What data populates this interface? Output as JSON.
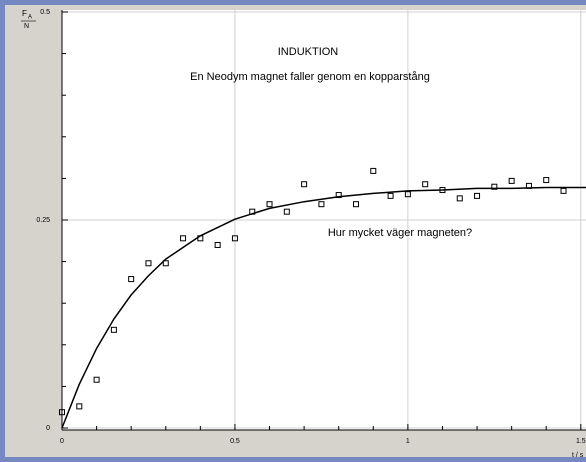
{
  "chart_data": {
    "type": "scatter",
    "title": "INDUKTION",
    "subtitle": "En Neodym magnet faller genom en kopparstång",
    "annotation": "Hur mycket väger magneten?",
    "ylabel": {
      "symbol": "F",
      "subscript": "A",
      "unit": "N"
    },
    "xlabel": "t / s",
    "xlim": [
      0,
      1.515
    ],
    "ylim": [
      0,
      0.5
    ],
    "xticks": [
      0,
      0.5,
      1,
      1.5
    ],
    "yticks": [
      0,
      0.25,
      0.5
    ],
    "xminorticks": [
      0.1,
      0.2,
      0.3,
      0.4,
      0.6,
      0.7,
      0.8,
      0.9,
      1.1,
      1.2,
      1.3,
      1.4
    ],
    "yminorticks": [
      0.05,
      0.1,
      0.15,
      0.2,
      0.3,
      0.35,
      0.4,
      0.45
    ],
    "grid": true,
    "series": [
      {
        "type": "scatter",
        "color": "#000000",
        "x": [
          0,
          0.05,
          0.1,
          0.15,
          0.2,
          0.25,
          0.3,
          0.35,
          0.4,
          0.45,
          0.5,
          0.55,
          0.6,
          0.65,
          0.7,
          0.75,
          0.8,
          0.85,
          0.9,
          0.95,
          1.0,
          1.05,
          1.1,
          1.15,
          1.2,
          1.25,
          1.3,
          1.35,
          1.4,
          1.45
        ],
        "values": [
          0.019,
          0.026,
          0.058,
          0.118,
          0.179,
          0.198,
          0.198,
          0.228,
          0.228,
          0.22,
          0.228,
          0.26,
          0.269,
          0.26,
          0.293,
          0.269,
          0.28,
          0.269,
          0.309,
          0.279,
          0.281,
          0.293,
          0.286,
          0.276,
          0.279,
          0.29,
          0.297,
          0.291,
          0.298,
          0.285
        ]
      },
      {
        "type": "line",
        "color": "#000000",
        "x": [
          0,
          0.05,
          0.1,
          0.15,
          0.2,
          0.25,
          0.3,
          0.4,
          0.5,
          0.6,
          0.7,
          0.8,
          0.9,
          1.0,
          1.1,
          1.2,
          1.3,
          1.4,
          1.515
        ],
        "values": [
          0,
          0.0526,
          0.0956,
          0.131,
          0.16,
          0.183,
          0.203,
          0.231,
          0.251,
          0.264,
          0.272,
          0.278,
          0.282,
          0.285,
          0.286,
          0.288,
          0.288,
          0.289,
          0.289
        ]
      }
    ]
  }
}
